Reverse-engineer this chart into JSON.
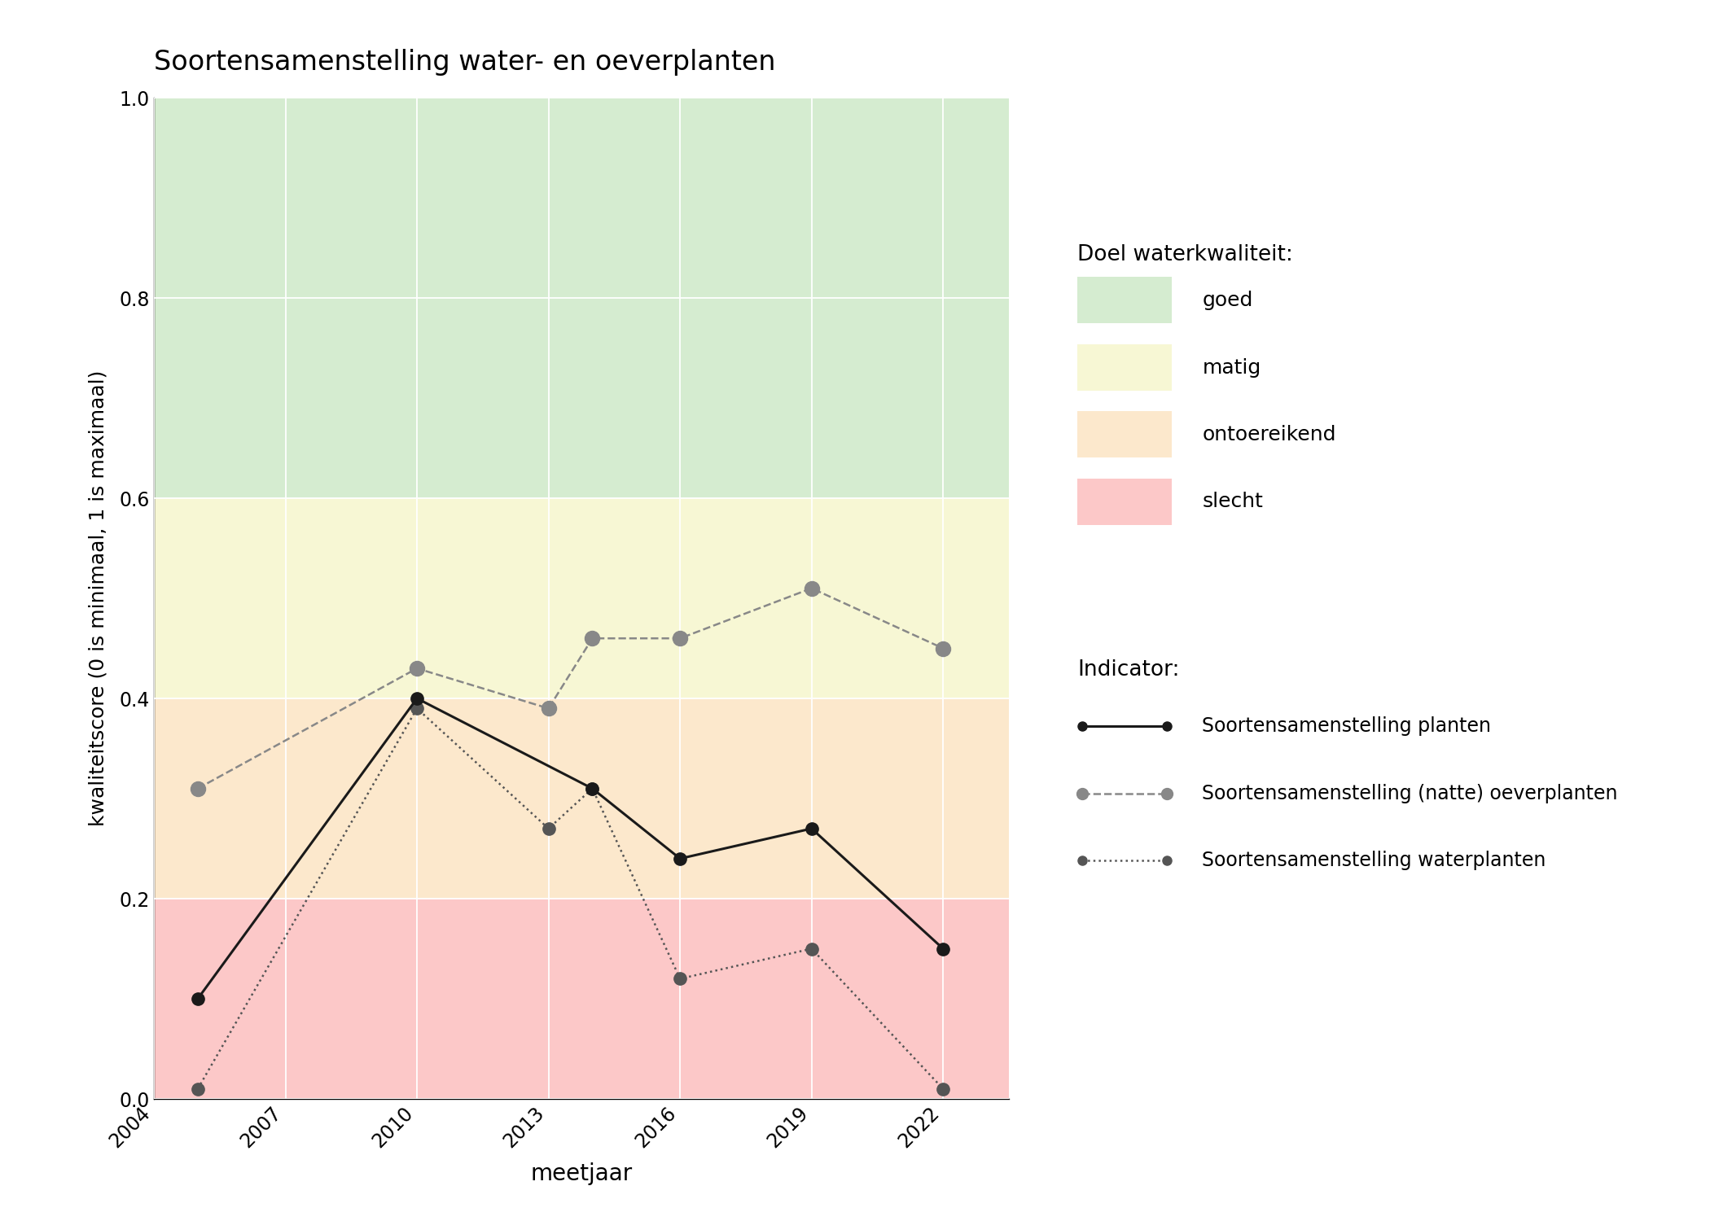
{
  "title": "Soortensamenstelling water- en oeverplanten",
  "xlabel": "meetjaar",
  "ylabel": "kwaliteitscore (0 is minimaal, 1 is maximaal)",
  "ylim": [
    0.0,
    1.0
  ],
  "xlim": [
    2004,
    2023.5
  ],
  "xticks": [
    2004,
    2007,
    2010,
    2013,
    2016,
    2019,
    2022
  ],
  "yticks": [
    0.0,
    0.2,
    0.4,
    0.6,
    0.8,
    1.0
  ],
  "background_color": "#ffffff",
  "plot_bg": "#ffffff",
  "quality_bands": [
    {
      "ymin": 0.6,
      "ymax": 1.0,
      "color": "#d5ecd0",
      "label": "goed"
    },
    {
      "ymin": 0.4,
      "ymax": 0.6,
      "color": "#f7f7d4",
      "label": "matig"
    },
    {
      "ymin": 0.2,
      "ymax": 0.4,
      "color": "#fce8cc",
      "label": "ontoereikend"
    },
    {
      "ymin": 0.0,
      "ymax": 0.2,
      "color": "#fcc8c8",
      "label": "slecht"
    }
  ],
  "series": {
    "planten": {
      "x": [
        2005,
        2010,
        2014,
        2016,
        2019,
        2022
      ],
      "y": [
        0.1,
        0.4,
        0.31,
        0.24,
        0.27,
        0.15
      ],
      "color": "#1a1a1a",
      "linestyle": "-",
      "linewidth": 2.2,
      "markersize": 11,
      "marker": "o",
      "label": "Soortensamenstelling planten",
      "zorder": 5
    },
    "oeverplanten": {
      "x": [
        2005,
        2010,
        2013,
        2014,
        2016,
        2019,
        2022
      ],
      "y": [
        0.31,
        0.43,
        0.39,
        0.46,
        0.46,
        0.51,
        0.45
      ],
      "color": "#888888",
      "linestyle": "--",
      "linewidth": 1.8,
      "markersize": 13,
      "marker": "o",
      "label": "Soortensamenstelling (natte) oeverplanten",
      "zorder": 4
    },
    "waterplanten": {
      "x": [
        2005,
        2010,
        2013,
        2014,
        2016,
        2019,
        2022
      ],
      "y": [
        0.01,
        0.39,
        0.27,
        0.31,
        0.12,
        0.15,
        0.01
      ],
      "color": "#555555",
      "linestyle": ":",
      "linewidth": 1.8,
      "markersize": 11,
      "marker": "o",
      "label": "Soortensamenstelling waterplanten",
      "zorder": 3
    }
  },
  "legend_title_kwaliteit": "Doel waterkwaliteit:",
  "legend_title_indicator": "Indicator:",
  "legend_kwaliteit_labels": [
    "goed",
    "matig",
    "ontoereikend",
    "slecht"
  ],
  "legend_kwaliteit_colors": [
    "#d5ecd0",
    "#f7f7d4",
    "#fce8cc",
    "#fcc8c8"
  ]
}
